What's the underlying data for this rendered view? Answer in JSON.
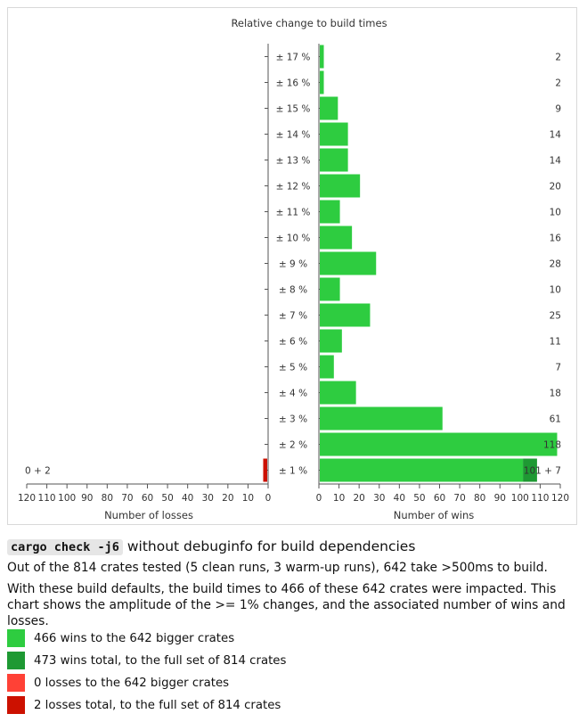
{
  "chart_data": {
    "type": "bar",
    "title": "Relative change to build times",
    "categories": [
      "± 17 %",
      "± 16 %",
      "± 15 %",
      "± 14 %",
      "± 13 %",
      "± 12 %",
      "± 11 %",
      "± 10 %",
      "± 9 %",
      "± 8 %",
      "± 7 %",
      "± 6 %",
      "± 5 %",
      "± 4 %",
      "± 3 %",
      "± 2 %",
      "± 1 %"
    ],
    "wins": {
      "xlabel": "Number of wins",
      "xlim": [
        0,
        120
      ],
      "ticks": [
        "0",
        "10",
        "20",
        "30",
        "40",
        "50",
        "60",
        "70",
        "80",
        "90",
        "100",
        "110",
        "120"
      ],
      "series": [
        {
          "name": "wins to the 642 bigger crates",
          "color": "#2ecc40",
          "values": [
            2,
            2,
            9,
            14,
            14,
            20,
            10,
            16,
            28,
            10,
            25,
            11,
            7,
            18,
            61,
            118,
            101
          ]
        },
        {
          "name": "additional wins, full set of 814 crates",
          "color": "#1e9933",
          "values": [
            0,
            0,
            0,
            0,
            0,
            0,
            0,
            0,
            0,
            0,
            0,
            0,
            0,
            0,
            0,
            0,
            7
          ]
        }
      ],
      "labels": [
        "2",
        "2",
        "9",
        "14",
        "14",
        "20",
        "10",
        "16",
        "28",
        "10",
        "25",
        "11",
        "7",
        "18",
        "61",
        "118",
        "101 + 7"
      ]
    },
    "losses": {
      "xlabel": "Number of losses",
      "xlim": [
        0,
        120
      ],
      "ticks": [
        "120",
        "110",
        "100",
        "90",
        "80",
        "70",
        "60",
        "50",
        "40",
        "30",
        "20",
        "10",
        "0"
      ],
      "series": [
        {
          "name": "losses to the 642 bigger crates",
          "color": "#ff4136",
          "values": [
            0,
            0,
            0,
            0,
            0,
            0,
            0,
            0,
            0,
            0,
            0,
            0,
            0,
            0,
            0,
            0,
            0
          ]
        },
        {
          "name": "additional losses, full set of 814 crates",
          "color": "#cc1100",
          "values": [
            0,
            0,
            0,
            0,
            0,
            0,
            0,
            0,
            0,
            0,
            0,
            0,
            0,
            0,
            0,
            0,
            2
          ]
        }
      ],
      "labels": [
        "",
        "",
        "",
        "",
        "",
        "",
        "",
        "",
        "",
        "",
        "",
        "",
        "",
        "",
        "",
        "",
        "0 + 2"
      ]
    }
  },
  "description": {
    "command": "cargo check -j6",
    "command_suffix": " without debuginfo for build dependencies",
    "para1": "Out of the 814 crates tested (5 clean runs, 3 warm-up runs), 642 take >500ms to build.",
    "para2": "With these build defaults, the build times to 466 of these 642 crates were impacted. This chart shows the amplitude of the >= 1% changes, and the associated number of wins and losses."
  },
  "legend": [
    {
      "label": "466 wins to the 642 bigger crates",
      "color": "#2ecc40"
    },
    {
      "label": "473 wins total, to the full set of 814 crates",
      "color": "#1e9933"
    },
    {
      "label": "0 losses to the 642 bigger crates",
      "color": "#ff4136"
    },
    {
      "label": "2 losses total, to the full set of 814 crates",
      "color": "#cc1100"
    }
  ]
}
